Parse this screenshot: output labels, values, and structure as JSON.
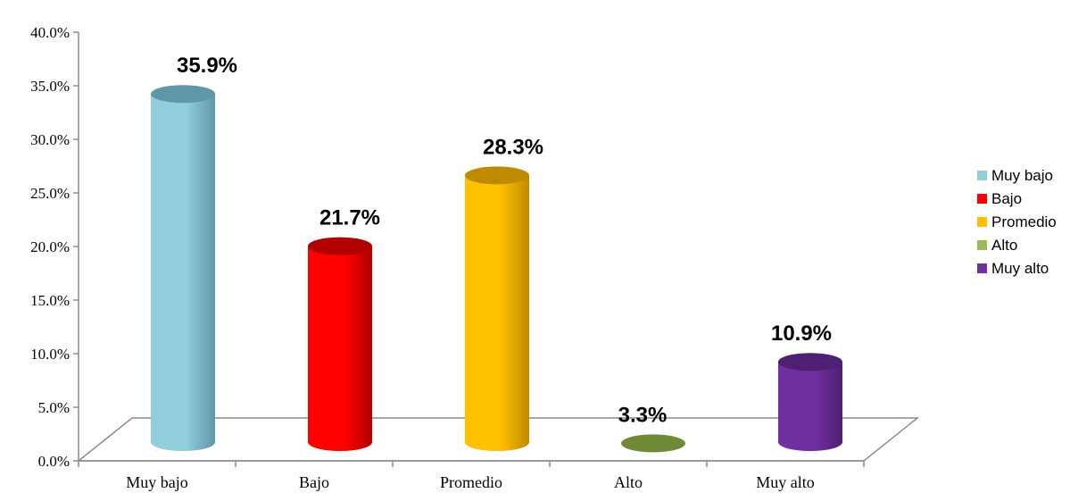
{
  "chart_data": {
    "type": "bar",
    "style": "3d-cylinder",
    "categories": [
      "Muy bajo",
      "Bajo",
      "Promedio",
      "Alto",
      "Muy alto"
    ],
    "values": [
      35.9,
      21.7,
      28.3,
      3.3,
      10.9
    ],
    "data_labels": [
      "35.9%",
      "21.7%",
      "28.3%",
      "3.3%",
      "10.9%"
    ],
    "colors": [
      "#92CDDC",
      "#FF0000",
      "#FFC000",
      "#9BBB59",
      "#7030A0"
    ],
    "dark_colors": [
      "#5F97A8",
      "#B00000",
      "#C08A00",
      "#6E8A36",
      "#4E1F73"
    ],
    "legend_position": "right",
    "legend": [
      "Muy bajo",
      "Bajo",
      "Promedio",
      "Alto",
      "Muy alto"
    ],
    "yticks": [
      "0.0%",
      "5.0%",
      "10.0%",
      "15.0%",
      "20.0%",
      "25.0%",
      "30.0%",
      "35.0%",
      "40.0%"
    ],
    "ylim": [
      0,
      40
    ],
    "grid": false
  }
}
